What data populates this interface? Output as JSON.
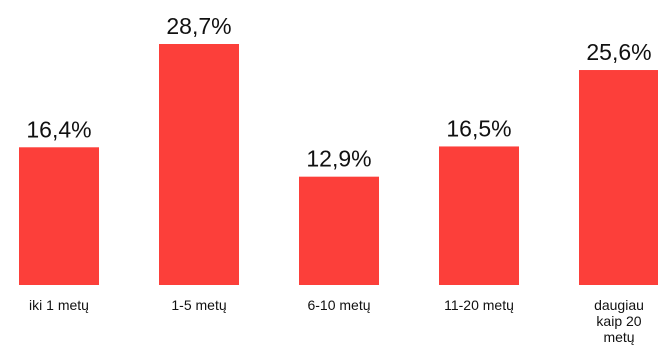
{
  "chart_data": {
    "type": "bar",
    "categories": [
      "iki 1 metų",
      "1-5 metų",
      "6-10 metų",
      "11-20 metų",
      "daugiau kaip 20 metų"
    ],
    "category_lines": [
      [
        "iki 1 metų"
      ],
      [
        "1-5 metų"
      ],
      [
        "6-10 metų"
      ],
      [
        "11-20 metų"
      ],
      [
        "daugiau",
        "kaip 20",
        "metų"
      ]
    ],
    "values": [
      16.4,
      28.7,
      12.9,
      16.5,
      25.6
    ],
    "value_labels": [
      "16,4%",
      "28,7%",
      "12,9%",
      "16,5%",
      "25,6%"
    ],
    "bar_color": "#fc3f3a",
    "ylim": [
      0,
      28.7
    ],
    "grid": false,
    "legend": "none"
  }
}
